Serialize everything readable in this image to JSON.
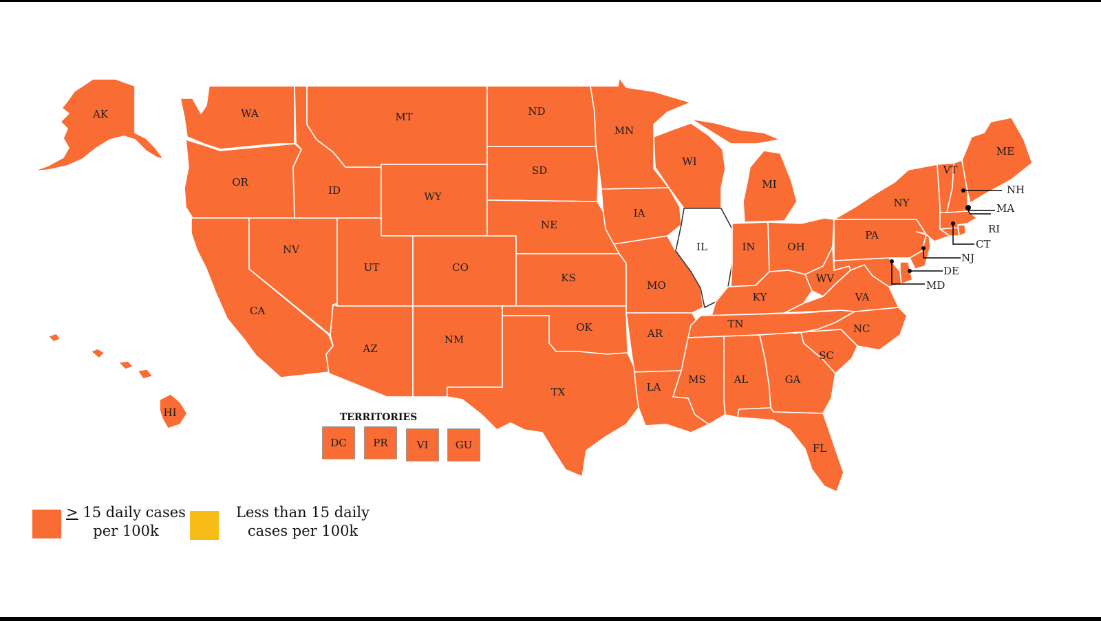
{
  "colors": {
    "high": "#f96d35",
    "low": "#f7bc17",
    "none": "#ffffff",
    "border": "#ffffff",
    "callout": "#000000"
  },
  "states": [
    {
      "abbr": "AK",
      "level": "high"
    },
    {
      "abbr": "WA",
      "level": "high"
    },
    {
      "abbr": "OR",
      "level": "high"
    },
    {
      "abbr": "CA",
      "level": "high"
    },
    {
      "abbr": "NV",
      "level": "high"
    },
    {
      "abbr": "ID",
      "level": "high"
    },
    {
      "abbr": "MT",
      "level": "high"
    },
    {
      "abbr": "WY",
      "level": "high"
    },
    {
      "abbr": "UT",
      "level": "high"
    },
    {
      "abbr": "CO",
      "level": "high"
    },
    {
      "abbr": "AZ",
      "level": "high"
    },
    {
      "abbr": "NM",
      "level": "high"
    },
    {
      "abbr": "ND",
      "level": "high"
    },
    {
      "abbr": "SD",
      "level": "high"
    },
    {
      "abbr": "NE",
      "level": "high"
    },
    {
      "abbr": "KS",
      "level": "high"
    },
    {
      "abbr": "OK",
      "level": "high"
    },
    {
      "abbr": "TX",
      "level": "high"
    },
    {
      "abbr": "MN",
      "level": "high"
    },
    {
      "abbr": "IA",
      "level": "high"
    },
    {
      "abbr": "MO",
      "level": "high"
    },
    {
      "abbr": "AR",
      "level": "high"
    },
    {
      "abbr": "LA",
      "level": "high"
    },
    {
      "abbr": "WI",
      "level": "high"
    },
    {
      "abbr": "IL",
      "level": "none"
    },
    {
      "abbr": "MI",
      "level": "high"
    },
    {
      "abbr": "IN",
      "level": "high"
    },
    {
      "abbr": "OH",
      "level": "high"
    },
    {
      "abbr": "KY",
      "level": "high"
    },
    {
      "abbr": "TN",
      "level": "high"
    },
    {
      "abbr": "MS",
      "level": "high"
    },
    {
      "abbr": "AL",
      "level": "high"
    },
    {
      "abbr": "GA",
      "level": "high"
    },
    {
      "abbr": "FL",
      "level": "high"
    },
    {
      "abbr": "SC",
      "level": "high"
    },
    {
      "abbr": "NC",
      "level": "high"
    },
    {
      "abbr": "VA",
      "level": "high"
    },
    {
      "abbr": "WV",
      "level": "high"
    },
    {
      "abbr": "PA",
      "level": "high"
    },
    {
      "abbr": "NY",
      "level": "high"
    },
    {
      "abbr": "VT",
      "level": "high"
    },
    {
      "abbr": "ME",
      "level": "high"
    },
    {
      "abbr": "HI",
      "level": "high"
    },
    {
      "abbr": "NH",
      "level": "high"
    },
    {
      "abbr": "MA",
      "level": "high"
    },
    {
      "abbr": "RI",
      "level": "high"
    },
    {
      "abbr": "CT",
      "level": "high"
    },
    {
      "abbr": "NJ",
      "level": "high"
    },
    {
      "abbr": "DE",
      "level": "high"
    },
    {
      "abbr": "MD",
      "level": "high"
    }
  ],
  "territories": {
    "title": "TERRITORIES",
    "items": [
      {
        "abbr": "DC",
        "level": "high"
      },
      {
        "abbr": "PR",
        "level": "high"
      },
      {
        "abbr": "VI",
        "level": "high"
      },
      {
        "abbr": "GU",
        "level": "high"
      }
    ]
  },
  "legend": [
    {
      "symbol": ">",
      "text_line1": " 15 daily cases",
      "text_line2": "per 100k",
      "level": "high"
    },
    {
      "symbol": "",
      "text_line1": "Less than 15 daily",
      "text_line2": "cases per 100k",
      "level": "low"
    }
  ]
}
